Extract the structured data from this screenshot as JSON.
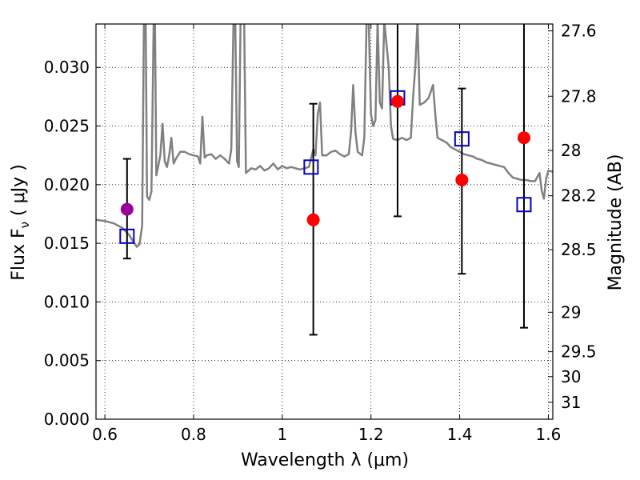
{
  "chart_data": {
    "type": "scatter",
    "xlabel": "Wavelength  λ (μm)",
    "ylabel": "Flux  F",
    "ylabel_sub": "ν",
    "ylabel_unit": "  ( μJy )",
    "y2label": "Magnitude (AB)",
    "xlim": [
      0.58,
      1.61
    ],
    "ylim": [
      0.0,
      0.0337
    ],
    "grid": true,
    "x_ticks": [
      0.6,
      0.8,
      1.0,
      1.2,
      1.4,
      1.6
    ],
    "x_tick_labels": [
      "0.6",
      "0.8",
      "1",
      "1.2",
      "1.4",
      "1.6"
    ],
    "y_ticks": [
      0.0,
      0.005,
      0.01,
      0.015,
      0.02,
      0.025,
      0.03
    ],
    "y_tick_labels": [
      "0.000",
      "0.005",
      "0.010",
      "0.015",
      "0.020",
      "0.025",
      "0.030"
    ],
    "y2_ticks": [
      27.6,
      27.8,
      28,
      28.2,
      28.5,
      29,
      29.5,
      30,
      31
    ],
    "y2_tick_labels": [
      "27.6",
      "27.8",
      "28",
      "28.2",
      "28.5",
      "29",
      "29.5",
      "30",
      "31"
    ],
    "colors": {
      "sed": "#808080",
      "observed": "#ff0000",
      "upper": "#990099",
      "model": "#0000cc",
      "errorbar": "#000000"
    },
    "series": [
      {
        "type": "line",
        "points": [
          [
            0.58,
            0.017
          ],
          [
            0.6,
            0.0169
          ],
          [
            0.62,
            0.0167
          ],
          [
            0.64,
            0.0163
          ],
          [
            0.655,
            0.0157
          ],
          [
            0.665,
            0.0151
          ],
          [
            0.672,
            0.0147
          ],
          [
            0.678,
            0.0149
          ],
          [
            0.684,
            0.0165
          ],
          [
            0.688,
            0.034
          ],
          [
            0.692,
            0.034
          ],
          [
            0.695,
            0.019
          ],
          [
            0.7,
            0.0187
          ],
          [
            0.705,
            0.0194
          ],
          [
            0.71,
            0.034
          ],
          [
            0.713,
            0.034
          ],
          [
            0.716,
            0.0208
          ],
          [
            0.72,
            0.0215
          ],
          [
            0.725,
            0.0225
          ],
          [
            0.73,
            0.0252
          ],
          [
            0.735,
            0.022
          ],
          [
            0.74,
            0.0215
          ],
          [
            0.745,
            0.0225
          ],
          [
            0.75,
            0.024
          ],
          [
            0.755,
            0.0218
          ],
          [
            0.76,
            0.0222
          ],
          [
            0.77,
            0.0228
          ],
          [
            0.78,
            0.0228
          ],
          [
            0.79,
            0.0226
          ],
          [
            0.8,
            0.0225
          ],
          [
            0.81,
            0.0224
          ],
          [
            0.815,
            0.0218
          ],
          [
            0.82,
            0.0258
          ],
          [
            0.825,
            0.0223
          ],
          [
            0.83,
            0.0225
          ],
          [
            0.84,
            0.0226
          ],
          [
            0.85,
            0.0222
          ],
          [
            0.86,
            0.0225
          ],
          [
            0.87,
            0.0222
          ],
          [
            0.88,
            0.0218
          ],
          [
            0.885,
            0.023
          ],
          [
            0.89,
            0.034
          ],
          [
            0.894,
            0.034
          ],
          [
            0.898,
            0.022
          ],
          [
            0.902,
            0.0215
          ],
          [
            0.906,
            0.034
          ],
          [
            0.91,
            0.034
          ],
          [
            0.914,
            0.034
          ],
          [
            0.918,
            0.021
          ],
          [
            0.93,
            0.0214
          ],
          [
            0.94,
            0.0213
          ],
          [
            0.95,
            0.0216
          ],
          [
            0.96,
            0.0212
          ],
          [
            0.97,
            0.0214
          ],
          [
            0.98,
            0.0218
          ],
          [
            0.99,
            0.0213
          ],
          [
            1.0,
            0.0216
          ],
          [
            1.01,
            0.0214
          ],
          [
            1.02,
            0.0215
          ],
          [
            1.04,
            0.0213
          ],
          [
            1.06,
            0.0215
          ],
          [
            1.07,
            0.023
          ],
          [
            1.075,
            0.0225
          ],
          [
            1.08,
            0.026
          ],
          [
            1.085,
            0.027
          ],
          [
            1.09,
            0.0225
          ],
          [
            1.1,
            0.0225
          ],
          [
            1.11,
            0.0228
          ],
          [
            1.12,
            0.0229
          ],
          [
            1.13,
            0.0226
          ],
          [
            1.14,
            0.0224
          ],
          [
            1.15,
            0.0226
          ],
          [
            1.155,
            0.0245
          ],
          [
            1.16,
            0.0285
          ],
          [
            1.165,
            0.0245
          ],
          [
            1.17,
            0.0228
          ],
          [
            1.18,
            0.0225
          ],
          [
            1.185,
            0.024
          ],
          [
            1.19,
            0.034
          ],
          [
            1.195,
            0.034
          ],
          [
            1.2,
            0.026
          ],
          [
            1.205,
            0.025
          ],
          [
            1.21,
            0.0255
          ],
          [
            1.215,
            0.034
          ],
          [
            1.22,
            0.027
          ],
          [
            1.225,
            0.0265
          ],
          [
            1.23,
            0.034
          ],
          [
            1.24,
            0.03
          ],
          [
            1.245,
            0.025
          ],
          [
            1.25,
            0.0239
          ],
          [
            1.26,
            0.0238
          ],
          [
            1.27,
            0.024
          ],
          [
            1.28,
            0.0238
          ],
          [
            1.29,
            0.024
          ],
          [
            1.295,
            0.0275
          ],
          [
            1.3,
            0.03
          ],
          [
            1.305,
            0.034
          ],
          [
            1.31,
            0.0268
          ],
          [
            1.32,
            0.027
          ],
          [
            1.33,
            0.0274
          ],
          [
            1.34,
            0.0285
          ],
          [
            1.345,
            0.026
          ],
          [
            1.35,
            0.024
          ],
          [
            1.36,
            0.0238
          ],
          [
            1.37,
            0.0236
          ],
          [
            1.38,
            0.0232
          ],
          [
            1.39,
            0.023
          ],
          [
            1.4,
            0.0228
          ],
          [
            1.41,
            0.0226
          ],
          [
            1.42,
            0.0225
          ],
          [
            1.43,
            0.0224
          ],
          [
            1.44,
            0.0222
          ],
          [
            1.45,
            0.0221
          ],
          [
            1.46,
            0.0219
          ],
          [
            1.47,
            0.0218
          ],
          [
            1.48,
            0.0217
          ],
          [
            1.49,
            0.0216
          ],
          [
            1.5,
            0.0215
          ],
          [
            1.51,
            0.021
          ],
          [
            1.52,
            0.0206
          ],
          [
            1.53,
            0.0205
          ],
          [
            1.54,
            0.0204
          ],
          [
            1.55,
            0.0204
          ],
          [
            1.56,
            0.0203
          ],
          [
            1.57,
            0.0203
          ],
          [
            1.58,
            0.021
          ],
          [
            1.585,
            0.0195
          ],
          [
            1.59,
            0.0188
          ],
          [
            1.595,
            0.0205
          ],
          [
            1.6,
            0.0212
          ],
          [
            1.61,
            0.0211
          ]
        ]
      },
      {
        "type": "scatter",
        "marker": "circle",
        "points": [
          {
            "x": 0.65,
            "y": 0.0179,
            "err_lo": 0.0137,
            "err_hi": 0.0222,
            "upper": true
          },
          {
            "x": 1.07,
            "y": 0.017,
            "err_lo": 0.0072,
            "err_hi": 0.0269
          },
          {
            "x": 1.26,
            "y": 0.0271,
            "err_lo": 0.0173,
            "err_hi": 0.034
          },
          {
            "x": 1.405,
            "y": 0.0204,
            "err_lo": 0.0124,
            "err_hi": 0.0282
          },
          {
            "x": 1.545,
            "y": 0.024,
            "err_lo": 0.0078,
            "err_hi": 0.034
          }
        ]
      },
      {
        "type": "scatter",
        "marker": "square",
        "points": [
          {
            "x": 0.65,
            "y": 0.0156
          },
          {
            "x": 1.065,
            "y": 0.0215
          },
          {
            "x": 1.26,
            "y": 0.0274
          },
          {
            "x": 1.405,
            "y": 0.0239
          },
          {
            "x": 1.545,
            "y": 0.0183
          }
        ]
      }
    ]
  }
}
